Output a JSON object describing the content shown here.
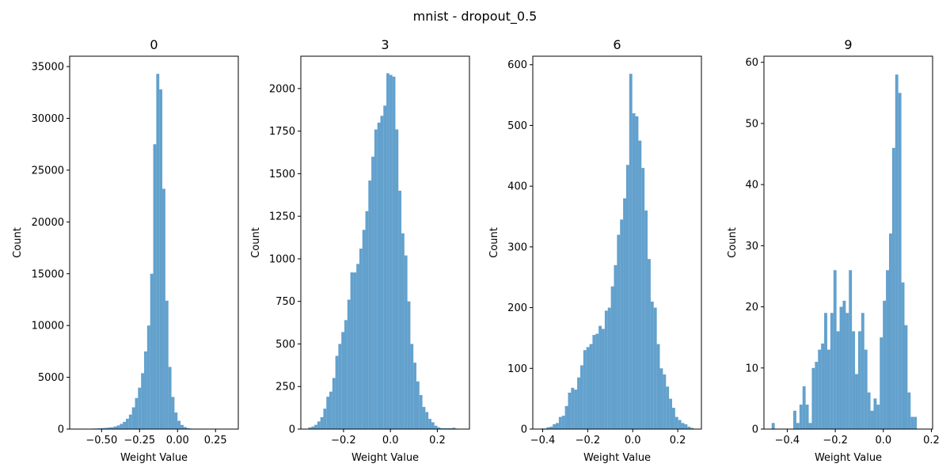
{
  "figure": {
    "title": "mnist - dropout_0.5",
    "bar_color": "#3c8ac0",
    "bar_opacity": 0.8
  },
  "chart_data": [
    {
      "type": "bar",
      "title": "0",
      "xlabel": "Weight Value",
      "ylabel": "Count",
      "xlim": [
        -0.71,
        0.4
      ],
      "ylim": [
        0,
        36000
      ],
      "xticks": [
        -0.5,
        -0.25,
        0.0,
        0.25
      ],
      "xtick_labels": [
        "−0.50",
        "−0.25",
        "0.00",
        "0.25"
      ],
      "yticks": [
        0,
        5000,
        10000,
        15000,
        20000,
        25000,
        30000,
        35000
      ],
      "ytick_labels": [
        "0",
        "5000",
        "10000",
        "15000",
        "20000",
        "25000",
        "30000",
        "35000"
      ],
      "bin_start": -0.66,
      "bin_width": 0.02,
      "values": [
        5,
        5,
        10,
        20,
        30,
        50,
        60,
        80,
        100,
        120,
        150,
        180,
        250,
        350,
        500,
        700,
        1000,
        1400,
        2100,
        3000,
        4000,
        5400,
        7500,
        10000,
        15000,
        27500,
        34300,
        32800,
        23200,
        12400,
        6000,
        3100,
        1600,
        800,
        400,
        200,
        100,
        50,
        20,
        10
      ]
    },
    {
      "type": "bar",
      "title": "3",
      "xlabel": "Weight Value",
      "ylabel": "Count",
      "xlim": [
        -0.382,
        0.337
      ],
      "ylim": [
        0,
        2190
      ],
      "xticks": [
        -0.2,
        0.0,
        0.2
      ],
      "xtick_labels": [
        "−0.2",
        "0.0",
        "0.2"
      ],
      "yticks": [
        0,
        250,
        500,
        750,
        1000,
        1250,
        1500,
        1750,
        2000
      ],
      "ytick_labels": [
        "0",
        "250",
        "500",
        "750",
        "1000",
        "1250",
        "1500",
        "1750",
        "2000"
      ],
      "bin_start": -0.35,
      "bin_width": 0.0128,
      "values": [
        10,
        15,
        25,
        45,
        70,
        120,
        190,
        220,
        300,
        430,
        500,
        570,
        640,
        760,
        920,
        920,
        970,
        1060,
        1170,
        1280,
        1460,
        1600,
        1760,
        1800,
        1840,
        1900,
        2090,
        2080,
        2070,
        1760,
        1400,
        1150,
        1020,
        750,
        500,
        390,
        280,
        200,
        130,
        100,
        60,
        40,
        20,
        10,
        5,
        5,
        5,
        5,
        8,
        3
      ]
    },
    {
      "type": "bar",
      "title": "6",
      "xlabel": "Weight Value",
      "ylabel": "Count",
      "xlim": [
        -0.444,
        0.305
      ],
      "ylim": [
        0,
        614
      ],
      "xticks": [
        -0.4,
        -0.2,
        0.0,
        0.2
      ],
      "xtick_labels": [
        "−0.4",
        "−0.2",
        "0.0",
        "0.2"
      ],
      "yticks": [
        0,
        100,
        200,
        300,
        400,
        500,
        600
      ],
      "ytick_labels": [
        "0",
        "100",
        "200",
        "300",
        "400",
        "500",
        "600"
      ],
      "bin_start": -0.41,
      "bin_width": 0.0136,
      "values": [
        1,
        1,
        3,
        4,
        8,
        10,
        20,
        22,
        38,
        60,
        68,
        65,
        85,
        105,
        130,
        135,
        140,
        155,
        157,
        170,
        165,
        195,
        200,
        235,
        270,
        320,
        345,
        380,
        435,
        585,
        520,
        515,
        475,
        430,
        360,
        280,
        210,
        200,
        140,
        100,
        90,
        70,
        50,
        35,
        20,
        15,
        10,
        8,
        4,
        2
      ]
    },
    {
      "type": "bar",
      "title": "9",
      "xlabel": "Weight Value",
      "ylabel": "Count",
      "xlim": [
        -0.497,
        0.205
      ],
      "ylim": [
        0,
        61
      ],
      "xticks": [
        -0.4,
        -0.2,
        0.0,
        0.2
      ],
      "xtick_labels": [
        "−0.4",
        "−0.2",
        "0.0",
        "0.2"
      ],
      "yticks": [
        0,
        10,
        20,
        30,
        40,
        50,
        60
      ],
      "ytick_labels": [
        "0",
        "10",
        "20",
        "30",
        "40",
        "50",
        "60"
      ],
      "bin_start": -0.465,
      "bin_width": 0.01286,
      "values": [
        1,
        0,
        0,
        0,
        0,
        0,
        0,
        3,
        1,
        4,
        7,
        4,
        1,
        10,
        11,
        13,
        14,
        19,
        13,
        19,
        26,
        16,
        20,
        21,
        19,
        26,
        16,
        9,
        16,
        19,
        13,
        6,
        3,
        5,
        4,
        15,
        21,
        26,
        32,
        46,
        58,
        55,
        24,
        17,
        6,
        2,
        2
      ]
    }
  ]
}
